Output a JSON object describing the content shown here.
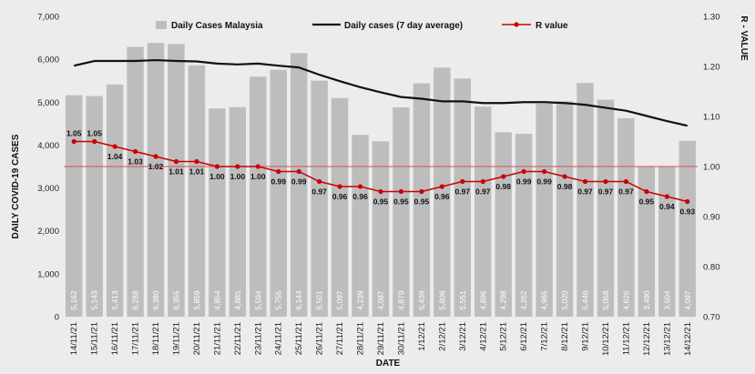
{
  "chart_data": {
    "type": "bar",
    "xlabel": "DATE",
    "ylabel": "DAILY COVID-19 CASES",
    "y2label": "R - VALUE",
    "ylim": [
      0,
      7000
    ],
    "y_ticks": [
      "0",
      "1,000",
      "2,000",
      "3,000",
      "4,000",
      "5,000",
      "6,000",
      "7,000"
    ],
    "y2lim": [
      0.7,
      1.3
    ],
    "y2_ticks": [
      "0.70",
      "0.80",
      "0.90",
      "1.00",
      "1.10",
      "1.20",
      "1.30"
    ],
    "grid": false,
    "legend_position": "top",
    "categories": [
      "14/11/21",
      "15/11/21",
      "16/11/21",
      "17/11/21",
      "18/11/21",
      "19/11/21",
      "20/11/21",
      "21/11/21",
      "22/11/21",
      "23/11/21",
      "24/11/21",
      "25/11/21",
      "26/11/21",
      "27/11/21",
      "28/11/21",
      "29/11/21",
      "30/11/21",
      "1/12/21",
      "2/12/21",
      "3/12/21",
      "4/12/21",
      "5/12/21",
      "6/12/21",
      "7/12/21",
      "8/12/21",
      "9/12/21",
      "10/12/21",
      "11/12/21",
      "12/12/21",
      "13/12/21",
      "14/12/21"
    ],
    "series": [
      {
        "name": "Daily Cases Malaysia",
        "type": "bar",
        "axis": "left",
        "color": "#bdbdbd",
        "values": [
          5162,
          5143,
          5413,
          6288,
          6380,
          6355,
          5859,
          4854,
          4885,
          5594,
          5755,
          6144,
          5501,
          5097,
          4239,
          4087,
          4879,
          5439,
          5806,
          5551,
          4896,
          4298,
          4262,
          4965,
          5020,
          5446,
          5058,
          4626,
          3490,
          3504,
          4097
        ],
        "labels": [
          "5,162",
          "5,143",
          "5,413",
          "6,288",
          "6,380",
          "6,355",
          "5,859",
          "4,854",
          "4,885",
          "5,594",
          "5,755",
          "6,144",
          "5,501",
          "5,097",
          "4,239",
          "4,087",
          "4,879",
          "5,439",
          "5,806",
          "5,551",
          "4,896",
          "4,298",
          "4,262",
          "4,965",
          "5,020",
          "5,446",
          "5,058",
          "4,626",
          "3,490",
          "3,504",
          "4,097"
        ]
      },
      {
        "name": "Daily cases (7 day average)",
        "type": "line",
        "axis": "left",
        "color": "#111111",
        "values": [
          5850,
          5960,
          5960,
          5960,
          5980,
          5960,
          5950,
          5900,
          5880,
          5900,
          5850,
          5810,
          5640,
          5490,
          5350,
          5230,
          5120,
          5080,
          5020,
          5020,
          4980,
          4980,
          5000,
          5000,
          4980,
          4940,
          4870,
          4800,
          4680,
          4560,
          4450
        ]
      },
      {
        "name": "R value",
        "type": "line",
        "axis": "right",
        "color": "#cc0000",
        "values": [
          1.05,
          1.05,
          1.04,
          1.03,
          1.02,
          1.01,
          1.01,
          1.0,
          1.0,
          1.0,
          0.99,
          0.99,
          0.97,
          0.96,
          0.96,
          0.95,
          0.95,
          0.95,
          0.96,
          0.97,
          0.97,
          0.98,
          0.99,
          0.99,
          0.98,
          0.97,
          0.97,
          0.97,
          0.95,
          0.94,
          0.93
        ],
        "labels": [
          "1.05",
          "1.05",
          "1.04",
          "1.03",
          "1.02",
          "1.01",
          "1.01",
          "1.00",
          "1.00",
          "1.00",
          "0.99",
          "0.99",
          "0.97",
          "0.96",
          "0.96",
          "0.95",
          "0.95",
          "0.95",
          "0.96",
          "0.97",
          "0.97",
          "0.98",
          "0.99",
          "0.99",
          "0.98",
          "0.97",
          "0.97",
          "0.97",
          "0.95",
          "0.94",
          "0.93"
        ]
      }
    ],
    "reference_line": {
      "axis": "right",
      "value": 1.0,
      "color": "#d9534f"
    }
  }
}
